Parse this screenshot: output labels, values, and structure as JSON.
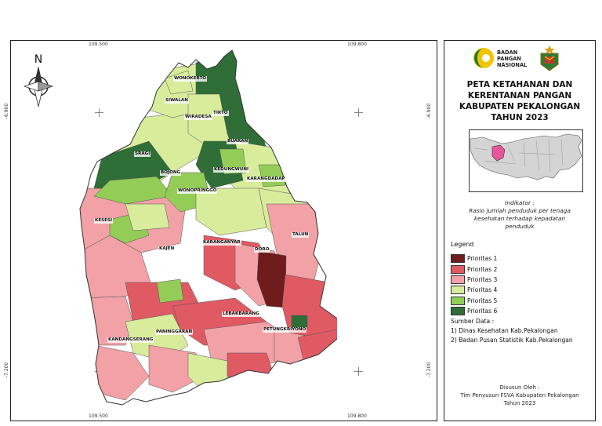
{
  "map": {
    "coords": {
      "top_left": "109.500",
      "top_right": "109.800",
      "bottom_left": "109.500",
      "bottom_right": "109.800",
      "left_top": "-6.900",
      "left_bottom": "-7.200",
      "right_top": "-6.900",
      "right_bottom": "-7.200"
    },
    "north_label": "N",
    "places": [
      "WONOKERTO",
      "SIWALAN",
      "WIRADESA",
      "TIRTO",
      "BUARAN",
      "SRAGI",
      "BOJONG",
      "KEDUNGWUNI",
      "KARANGDADAP",
      "WONOPRINGGO",
      "KESESI",
      "TALUN",
      "KAJEN",
      "KARANGANYAR",
      "DORO",
      "LEBAKBARANG",
      "PANINGGARAN",
      "KANDANGSERANG",
      "PETUNGKRIYONO"
    ]
  },
  "sidebar": {
    "logo_text": [
      "BADAN",
      "PANGAN",
      "NASIONAL"
    ],
    "title_lines": [
      "PETA KETAHANAN DAN",
      "KERENTANAN PANGAN",
      "KABUPATEN PEKALONGAN",
      "TAHUN 2023"
    ],
    "indicator_lines": [
      "Indikator :",
      "Rasio jumlah penduduk per tenaga",
      "kesehatan terhadap kepadatan",
      "penduduk"
    ],
    "legend_title": "Legend",
    "legend": [
      {
        "label": "Prioritas 1",
        "color": "#6e1c1c"
      },
      {
        "label": "Prioritas 2",
        "color": "#e05a63"
      },
      {
        "label": "Prioritas 3",
        "color": "#f2a2a6"
      },
      {
        "label": "Prioritas 4",
        "color": "#d8ec9c"
      },
      {
        "label": "Prioritas 5",
        "color": "#93cd58"
      },
      {
        "label": "Prioritas 6",
        "color": "#2f6e36"
      }
    ],
    "source_lines": [
      "Sumber Data :",
      "1) Dinas Kesehatan Kab.Pekalongan",
      "2) Badan Pusan Statistik Kab.Pekalongan"
    ],
    "compiled_lines": [
      "Disusun Oleh :",
      "Tim Penyusun FSVA Kabupaten Pekalongan",
      "Tahun 2023"
    ]
  }
}
